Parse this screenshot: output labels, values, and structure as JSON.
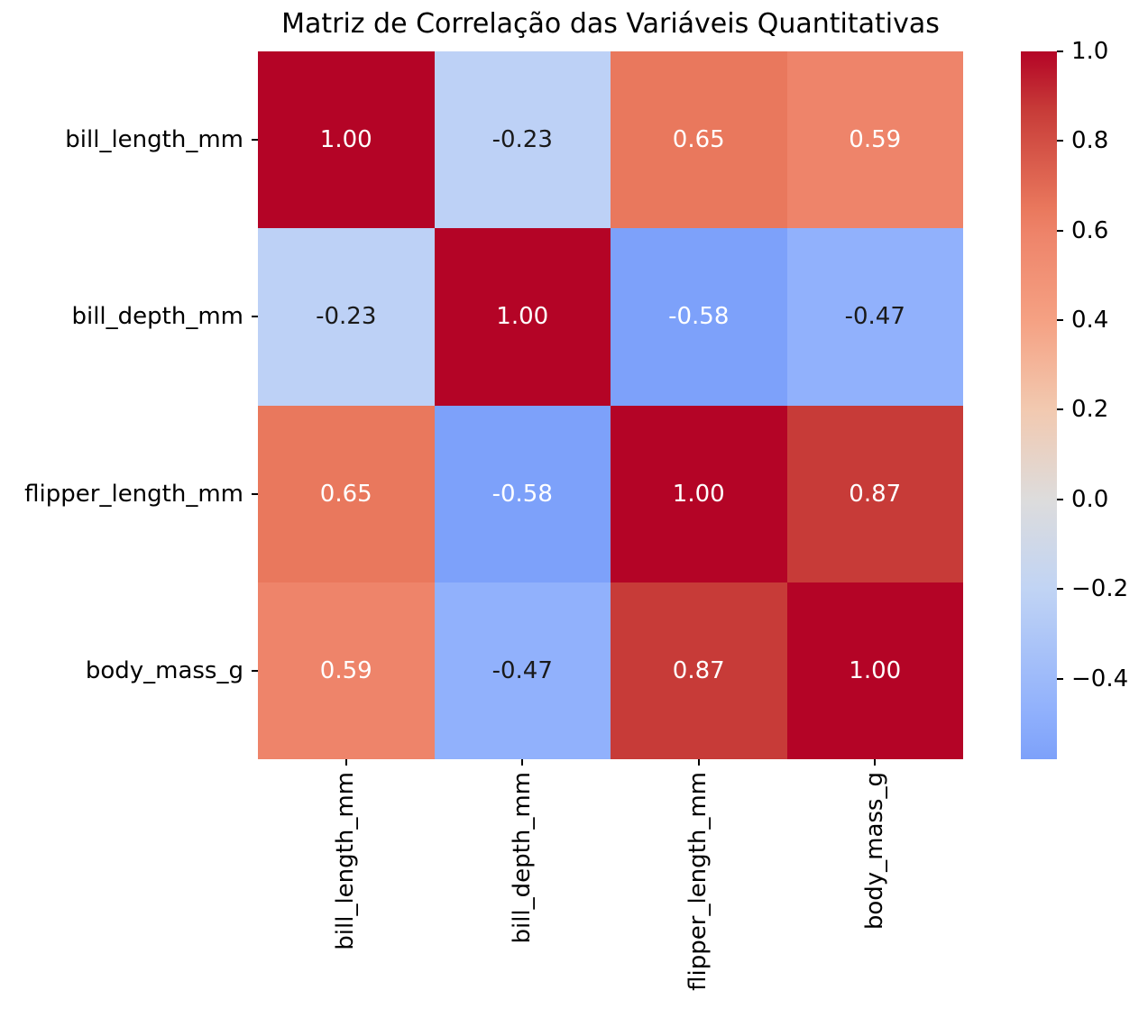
{
  "figure": {
    "background": "#ffffff"
  },
  "chart_data": {
    "type": "heatmap",
    "title": "Matriz de Correlação das Variáveis Quantitativas",
    "xlabel": "",
    "ylabel": "",
    "variables": [
      "bill_length_mm",
      "bill_depth_mm",
      "flipper_length_mm",
      "body_mass_g"
    ],
    "matrix": [
      [
        1.0,
        -0.23,
        0.65,
        0.59
      ],
      [
        -0.23,
        1.0,
        -0.58,
        -0.47
      ],
      [
        0.65,
        -0.58,
        1.0,
        0.87
      ],
      [
        0.59,
        -0.47,
        0.87,
        1.0
      ]
    ],
    "cell_labels": [
      [
        "1.00",
        "-0.23",
        "0.65",
        "0.59"
      ],
      [
        "-0.23",
        "1.00",
        "-0.58",
        "-0.47"
      ],
      [
        "0.65",
        "-0.58",
        "1.00",
        "0.87"
      ],
      [
        "0.59",
        "-0.47",
        "0.87",
        "1.00"
      ]
    ],
    "cell_colors": [
      [
        "#b40426",
        "#bdd1f6",
        "#e9785d",
        "#ee846a"
      ],
      [
        "#bdd1f6",
        "#b40426",
        "#7da1fa",
        "#91b1fc"
      ],
      [
        "#e9785d",
        "#7da1fa",
        "#b40426",
        "#c73b38"
      ],
      [
        "#ee846a",
        "#91b1fc",
        "#c73b38",
        "#b40426"
      ]
    ],
    "cell_text_colors": [
      [
        "#ffffff",
        "#1a1a1a",
        "#ffffff",
        "#ffffff"
      ],
      [
        "#1a1a1a",
        "#ffffff",
        "#ffffff",
        "#1a1a1a"
      ],
      [
        "#ffffff",
        "#ffffff",
        "#ffffff",
        "#ffffff"
      ],
      [
        "#ffffff",
        "#1a1a1a",
        "#ffffff",
        "#ffffff"
      ]
    ],
    "colormap": "coolwarm",
    "grid": false,
    "legend": "none",
    "colorbar": {
      "position": "right",
      "vmin": -0.58,
      "vmax": 1.0,
      "ticks": [
        "1.0",
        "0.8",
        "0.6",
        "0.4",
        "0.2",
        "0.0",
        "−0.2",
        "−0.4"
      ],
      "tick_values": [
        1.0,
        0.8,
        0.6,
        0.4,
        0.2,
        0.0,
        -0.2,
        -0.4
      ],
      "gradient_stops": [
        {
          "pos": "0%",
          "color": "#b40426"
        },
        {
          "pos": "8.2%",
          "color": "#c73b38"
        },
        {
          "pos": "22.2%",
          "color": "#e9785d"
        },
        {
          "pos": "25.9%",
          "color": "#ee846a"
        },
        {
          "pos": "38%",
          "color": "#f5a183"
        },
        {
          "pos": "50.6%",
          "color": "#f2c9b0"
        },
        {
          "pos": "63.3%",
          "color": "#dddcdc"
        },
        {
          "pos": "75.9%",
          "color": "#c1d4f4"
        },
        {
          "pos": "93%",
          "color": "#91b1fc"
        },
        {
          "pos": "100%",
          "color": "#7da1fa"
        }
      ]
    }
  }
}
